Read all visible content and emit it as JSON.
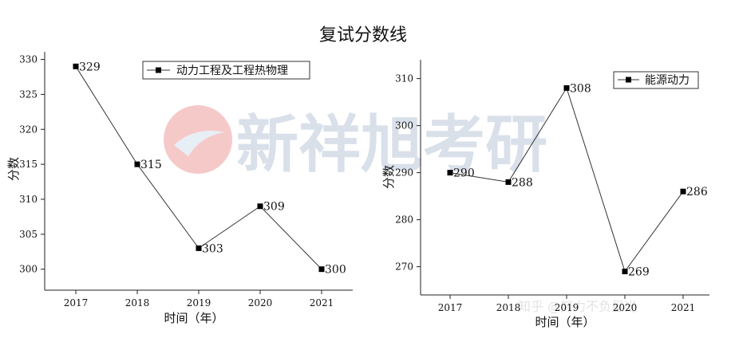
{
  "title": "复试分数线",
  "watermark": {
    "brand": "新祥旭考研",
    "credit": "知乎 @努力不负星光"
  },
  "chart_data": [
    {
      "type": "line",
      "categories": [
        "2017",
        "2018",
        "2019",
        "2020",
        "2021"
      ],
      "series": [
        {
          "name": "动力工程及工程热物理",
          "values": [
            329,
            315,
            303,
            309,
            300
          ]
        }
      ],
      "data_labels": [
        "329",
        "315",
        "303",
        "309",
        "300"
      ],
      "xlabel": "时间（年）",
      "ylabel": "分数",
      "ylim": [
        297,
        332
      ],
      "yticks": [
        "300",
        "305",
        "310",
        "315",
        "320",
        "325",
        "330"
      ],
      "legend": "top-right",
      "grid": false,
      "line_color": "#333333"
    },
    {
      "type": "line",
      "categories": [
        "2017",
        "2018",
        "2019",
        "2020",
        "2021"
      ],
      "series": [
        {
          "name": "能源动力",
          "values": [
            290,
            288,
            308,
            269,
            286
          ]
        }
      ],
      "data_labels": [
        "290",
        "288",
        "308",
        "269",
        "286"
      ],
      "xlabel": "时间（年）",
      "ylabel": "分数",
      "ylim": [
        264,
        314
      ],
      "yticks": [
        "270",
        "280",
        "290",
        "300",
        "310"
      ],
      "legend": "top-right",
      "grid": false,
      "line_color": "#333333"
    }
  ]
}
